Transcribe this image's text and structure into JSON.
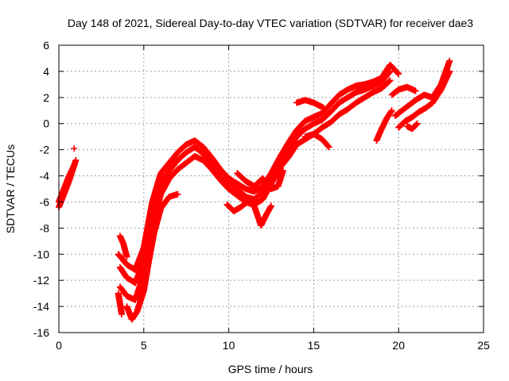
{
  "chart_data": {
    "type": "scatter",
    "title": "Day 148 of 2021, Sidereal Day-to-day VTEC variation (SDTVAR) for receiver dae3",
    "xlabel": "GPS time / hours",
    "ylabel": "SDTVAR / TECUs",
    "xlim": [
      0,
      25
    ],
    "ylim": [
      -16,
      6
    ],
    "xticks": [
      0,
      5,
      10,
      15,
      20,
      25
    ],
    "yticks": [
      -16,
      -14,
      -12,
      -10,
      -8,
      -6,
      -4,
      -2,
      0,
      2,
      4,
      6
    ],
    "grid": true,
    "marker": "+",
    "color": "#ff0000",
    "series": [
      {
        "x": [
          0.0,
          0.3,
          0.6,
          0.8,
          1.0
        ],
        "y": [
          -6.4,
          -5.4,
          -4.4,
          -3.6,
          -2.8
        ]
      },
      {
        "x": [
          0.0,
          0.3,
          0.6,
          0.9
        ],
        "y": [
          -6.0,
          -5.0,
          -4.0,
          -3.2
        ]
      },
      {
        "x": [
          0.9
        ],
        "y": [
          -1.9
        ]
      },
      {
        "x": [
          3.5,
          3.6,
          3.7
        ],
        "y": [
          -13.0,
          -13.8,
          -14.6
        ]
      },
      {
        "x": [
          3.5,
          4.0,
          4.5,
          5.0,
          5.5,
          6.0,
          6.5,
          7.0,
          7.5,
          8.0,
          8.5,
          9.0,
          9.5,
          10.0,
          10.5,
          11.0,
          11.5,
          12.0,
          12.5,
          13.0,
          13.5,
          14.0,
          14.5,
          15.0,
          15.5,
          16.0,
          16.5,
          17.0,
          17.5,
          18.0,
          18.5,
          19.0,
          19.5,
          20.0
        ],
        "y": [
          -10.0,
          -10.8,
          -11.2,
          -9.5,
          -6.0,
          -3.8,
          -3.0,
          -2.2,
          -1.6,
          -1.3,
          -1.8,
          -2.6,
          -3.5,
          -4.2,
          -4.6,
          -5.0,
          -5.2,
          -4.8,
          -3.8,
          -2.6,
          -1.5,
          -0.5,
          0.2,
          0.5,
          0.8,
          1.5,
          2.2,
          2.6,
          2.9,
          3.0,
          3.2,
          3.5,
          4.5,
          3.8
        ]
      },
      {
        "x": [
          3.6,
          4.0,
          4.5,
          5.0,
          5.5,
          6.0,
          6.5,
          7.0,
          7.5,
          8.0,
          8.5,
          9.0,
          9.5,
          10.0,
          10.5,
          11.0,
          11.5,
          12.0,
          12.5,
          13.0,
          13.5,
          14.0,
          14.5,
          15.0,
          15.5,
          16.0,
          16.5,
          17.0,
          17.5,
          18.0,
          18.5,
          19.0,
          19.5
        ],
        "y": [
          -11.0,
          -11.8,
          -12.2,
          -10.5,
          -7.0,
          -4.6,
          -3.6,
          -2.8,
          -2.2,
          -1.8,
          -2.3,
          -3.0,
          -3.8,
          -4.5,
          -5.0,
          -5.6,
          -5.8,
          -5.2,
          -4.2,
          -3.0,
          -2.0,
          -1.0,
          -0.4,
          0.0,
          0.3,
          0.9,
          1.6,
          2.0,
          2.4,
          2.6,
          2.9,
          3.2,
          4.0
        ]
      },
      {
        "x": [
          3.6,
          4.0,
          4.5,
          5.0,
          5.5,
          6.0,
          6.5,
          7.0,
          7.5,
          8.0,
          8.5,
          9.0,
          9.5,
          10.0,
          10.5,
          11.0,
          11.5,
          12.0,
          12.5,
          13.0,
          13.5,
          14.0,
          14.5,
          15.0,
          15.5,
          16.0,
          16.5,
          17.0,
          17.5,
          18.0,
          18.5,
          19.0,
          19.5
        ],
        "y": [
          -12.5,
          -13.2,
          -13.5,
          -11.5,
          -8.0,
          -5.4,
          -4.2,
          -3.5,
          -3.0,
          -2.5,
          -2.8,
          -3.5,
          -4.3,
          -5.0,
          -5.5,
          -6.0,
          -6.2,
          -5.8,
          -4.6,
          -3.4,
          -2.6,
          -1.6,
          -1.2,
          -0.8,
          -0.3,
          0.1,
          0.7,
          1.1,
          1.6,
          2.0,
          2.4,
          2.7,
          3.3
        ]
      },
      {
        "x": [
          4.0,
          4.3,
          4.6,
          5.0,
          5.3,
          5.6,
          6.0,
          6.5,
          7.0
        ],
        "y": [
          -14.0,
          -15.0,
          -14.4,
          -12.8,
          -10.5,
          -8.4,
          -6.5,
          -5.6,
          -5.4
        ]
      },
      {
        "x": [
          3.6,
          3.8,
          4.0
        ],
        "y": [
          -8.6,
          -9.2,
          -10.2
        ]
      },
      {
        "x": [
          9.9,
          10.3,
          10.7,
          11.1,
          11.5,
          11.9,
          12.2,
          12.5
        ],
        "y": [
          -6.2,
          -6.7,
          -6.4,
          -6.0,
          -6.3,
          -7.8,
          -7.0,
          -6.3
        ]
      },
      {
        "x": [
          10.5,
          11.0,
          11.5,
          12.0,
          12.5,
          12.9,
          13.2
        ],
        "y": [
          -3.8,
          -4.4,
          -4.8,
          -4.2,
          -5.0,
          -4.8,
          -3.6
        ]
      },
      {
        "x": [
          14.0,
          14.5,
          15.0,
          15.3,
          15.6
        ],
        "y": [
          1.6,
          1.8,
          1.6,
          1.4,
          1.2
        ]
      },
      {
        "x": [
          14.5,
          15.0,
          15.5,
          15.9
        ],
        "y": [
          -1.0,
          -0.8,
          -1.2,
          -1.8
        ]
      },
      {
        "x": [
          18.7,
          19.0,
          19.3,
          19.6
        ],
        "y": [
          -1.3,
          -0.4,
          0.4,
          1.0
        ]
      },
      {
        "x": [
          19.6,
          20.0,
          20.5,
          21.0
        ],
        "y": [
          2.2,
          2.6,
          2.8,
          2.5
        ]
      },
      {
        "x": [
          19.8,
          20.2,
          20.6,
          21.0,
          21.5,
          22.0,
          22.5,
          23.0
        ],
        "y": [
          0.6,
          1.0,
          1.4,
          1.8,
          2.2,
          2.0,
          3.0,
          4.8
        ]
      },
      {
        "x": [
          20.0,
          20.4,
          20.8,
          21.2,
          21.6,
          22.0,
          22.5,
          23.0
        ],
        "y": [
          -0.3,
          0.2,
          0.5,
          0.9,
          1.2,
          1.6,
          2.6,
          4.0
        ]
      },
      {
        "x": [
          20.5,
          20.8,
          21.1
        ],
        "y": [
          -0.2,
          -0.4,
          0.0
        ]
      }
    ]
  }
}
